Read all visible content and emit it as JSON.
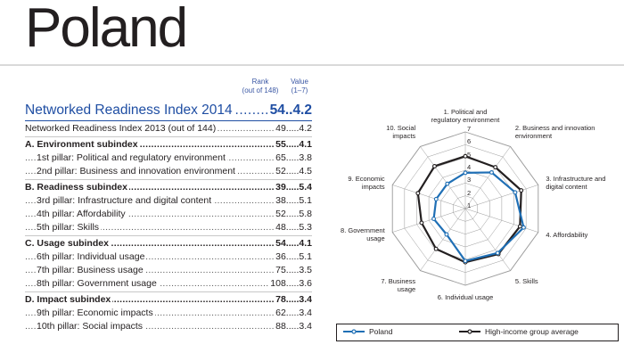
{
  "country": "Poland",
  "columns": {
    "rank_line1": "Rank",
    "rank_line2": "(out of 148)",
    "value_line1": "Value",
    "value_line2": "(1–7)"
  },
  "main_index": {
    "label": "Networked Readiness Index 2014",
    "rank": "54",
    "value": "4.2"
  },
  "rows": [
    {
      "kind": "prev",
      "label": "Networked Readiness Index 2013 (out of 144)",
      "rank": "49",
      "value": "4.2"
    },
    {
      "kind": "sub",
      "label": "A. Environment subindex",
      "rank": "55",
      "value": "4.1"
    },
    {
      "kind": "pillar",
      "label": "1st pillar: Political and regulatory environment",
      "rank": "65",
      "value": "3.8"
    },
    {
      "kind": "pillar",
      "label": "2nd pillar: Business and innovation environment",
      "rank": "52",
      "value": "4.5"
    },
    {
      "kind": "sub",
      "label": "B. Readiness subindex",
      "rank": "39",
      "value": "5.4"
    },
    {
      "kind": "pillar",
      "label": "3rd pillar: Infrastructure and digital content",
      "rank": "38",
      "value": "5.1"
    },
    {
      "kind": "pillar",
      "label": "4th pillar: Affordability",
      "rank": "52",
      "value": "5.8"
    },
    {
      "kind": "pillar",
      "label": "5th pillar: Skills",
      "rank": "48",
      "value": "5.3"
    },
    {
      "kind": "sub",
      "label": "C. Usage subindex",
      "rank": "54",
      "value": "4.1"
    },
    {
      "kind": "pillar",
      "label": "6th pillar: Individual usage",
      "rank": "36",
      "value": "5.1"
    },
    {
      "kind": "pillar",
      "label": "7th pillar: Business usage",
      "rank": "75",
      "value": "3.5"
    },
    {
      "kind": "pillar",
      "label": "8th pillar: Government usage",
      "rank": "108",
      "value": "3.6"
    },
    {
      "kind": "sub",
      "label": "D. Impact subindex",
      "rank": "78",
      "value": "3.4"
    },
    {
      "kind": "pillar",
      "label": "9th pillar: Economic impacts",
      "rank": "62",
      "value": "3.4"
    },
    {
      "kind": "pillar",
      "label": "10th pillar: Social impacts",
      "rank": "88",
      "value": "3.4"
    }
  ],
  "colors": {
    "accent": "#1f4ea3",
    "poland_series": "#1f6fb5",
    "highincome_series": "#231f20",
    "grid": "#9a9a9a"
  },
  "chart_data": {
    "type": "radar",
    "axes": [
      "1. Political and regulatory environment",
      "2. Business and innovation environment",
      "3. Infrastructure and digital content",
      "4. Affordability",
      "5. Skills",
      "6. Individual usage",
      "7. Business usage",
      "8. Government usage",
      "9. Economic impacts",
      "10. Social impacts"
    ],
    "axis_lines": [
      [
        "1. Political and",
        "regulatory environment"
      ],
      [
        "2. Business and innovation",
        "environment"
      ],
      [
        "3. Infrastructure and",
        "digital content"
      ],
      [
        "4. Affordability"
      ],
      [
        "5. Skills"
      ],
      [
        "6. Individual usage"
      ],
      [
        "7. Business",
        "usage"
      ],
      [
        "8. Government",
        "usage"
      ],
      [
        "9. Economic",
        "impacts"
      ],
      [
        "10. Social",
        "impacts"
      ]
    ],
    "range": [
      1,
      7
    ],
    "ticks": [
      "1",
      "2",
      "3",
      "4",
      "5",
      "6",
      "7"
    ],
    "series": [
      {
        "name": "Poland",
        "values": [
          3.8,
          4.5,
          5.1,
          5.8,
          5.3,
          5.1,
          3.5,
          3.6,
          3.4,
          3.4
        ]
      },
      {
        "name": "High-income group average",
        "values": [
          5.1,
          5.0,
          5.6,
          5.5,
          5.4,
          5.2,
          4.9,
          4.6,
          4.9,
          5.1
        ]
      }
    ],
    "legend": "bottom"
  }
}
